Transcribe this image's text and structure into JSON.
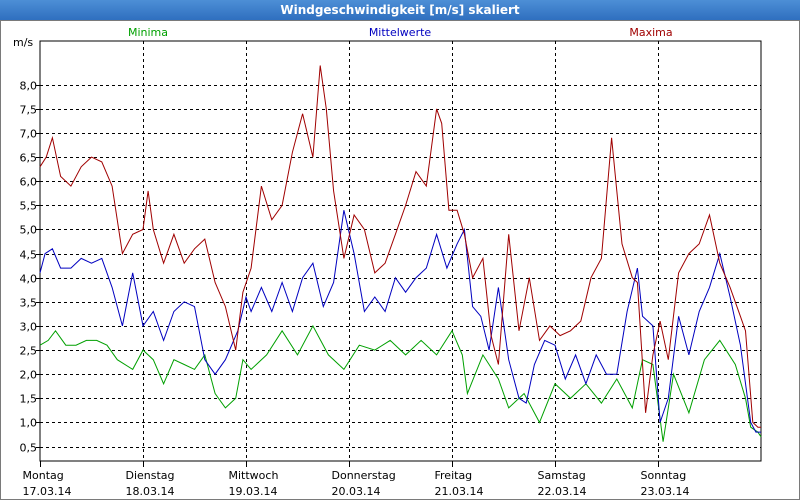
{
  "window": {
    "title": "Windgeschwindigkeit [m/s] skaliert"
  },
  "chart_data": {
    "type": "line",
    "title": "Windgeschwindigkeit [m/s] skaliert",
    "ylabel": "m/s",
    "ylim": [
      0.2,
      8.7
    ],
    "xlim": [
      0,
      7
    ],
    "yticks": [
      0.5,
      1.0,
      1.5,
      2.0,
      2.5,
      3.0,
      3.5,
      4.0,
      4.5,
      5.0,
      5.5,
      6.0,
      6.5,
      7.0,
      7.5,
      8.0
    ],
    "ytick_labels": [
      "0,5",
      "1,0",
      "1,5",
      "2,0",
      "2,5",
      "3,0",
      "3,5",
      "4,0",
      "4,5",
      "5,0",
      "5,5",
      "6,0",
      "6,5",
      "7,0",
      "7,5",
      "8,0"
    ],
    "days": [
      {
        "name": "Montag",
        "date": "17.03.14"
      },
      {
        "name": "Dienstag",
        "date": "18.03.14"
      },
      {
        "name": "Mittwoch",
        "date": "19.03.14"
      },
      {
        "name": "Donnerstag",
        "date": "20.03.14"
      },
      {
        "name": "Freitag",
        "date": "21.03.14"
      },
      {
        "name": "Samstag",
        "date": "22.03.14"
      },
      {
        "name": "Sonntag",
        "date": "23.03.14"
      }
    ],
    "grid": true,
    "legend_position": "top",
    "series": [
      {
        "name": "Minima",
        "color": "#00a000",
        "x": [
          0.0,
          0.08,
          0.15,
          0.25,
          0.35,
          0.45,
          0.55,
          0.65,
          0.75,
          0.9,
          1.0,
          1.1,
          1.2,
          1.3,
          1.4,
          1.5,
          1.6,
          1.7,
          1.8,
          1.9,
          1.97,
          2.05,
          2.2,
          2.35,
          2.5,
          2.65,
          2.8,
          2.95,
          3.1,
          3.25,
          3.4,
          3.55,
          3.7,
          3.85,
          4.0,
          4.1,
          4.15,
          4.3,
          4.45,
          4.55,
          4.7,
          4.85,
          5.0,
          5.15,
          5.3,
          5.45,
          5.6,
          5.75,
          5.85,
          5.95,
          6.05,
          6.15,
          6.3,
          6.45,
          6.6,
          6.75,
          6.85,
          6.9,
          6.97,
          7.0
        ],
        "y": [
          2.6,
          2.7,
          2.9,
          2.6,
          2.6,
          2.7,
          2.7,
          2.6,
          2.3,
          2.1,
          2.5,
          2.3,
          1.8,
          2.3,
          2.2,
          2.1,
          2.4,
          1.6,
          1.3,
          1.5,
          2.3,
          2.1,
          2.4,
          2.9,
          2.4,
          3.0,
          2.4,
          2.1,
          2.6,
          2.5,
          2.7,
          2.4,
          2.7,
          2.4,
          2.9,
          2.4,
          1.6,
          2.4,
          1.9,
          1.3,
          1.6,
          1.0,
          1.8,
          1.5,
          1.8,
          1.4,
          1.9,
          1.3,
          2.3,
          2.2,
          0.6,
          2.0,
          1.2,
          2.3,
          2.7,
          2.2,
          1.5,
          0.9,
          0.8,
          0.7
        ]
      },
      {
        "name": "Mittelwerte",
        "color": "#0000c0",
        "x": [
          0.0,
          0.05,
          0.12,
          0.2,
          0.3,
          0.4,
          0.5,
          0.6,
          0.7,
          0.8,
          0.9,
          1.0,
          1.1,
          1.2,
          1.3,
          1.4,
          1.5,
          1.6,
          1.7,
          1.8,
          1.92,
          2.0,
          2.05,
          2.15,
          2.25,
          2.35,
          2.45,
          2.55,
          2.65,
          2.75,
          2.85,
          2.95,
          3.05,
          3.15,
          3.25,
          3.35,
          3.45,
          3.55,
          3.65,
          3.75,
          3.85,
          3.95,
          4.05,
          4.12,
          4.2,
          4.28,
          4.36,
          4.45,
          4.55,
          4.65,
          4.72,
          4.8,
          4.9,
          5.0,
          5.1,
          5.2,
          5.3,
          5.4,
          5.5,
          5.6,
          5.7,
          5.8,
          5.85,
          5.95,
          6.02,
          6.1,
          6.2,
          6.3,
          6.4,
          6.5,
          6.6,
          6.7,
          6.8,
          6.9,
          6.95,
          7.0
        ],
        "y": [
          4.1,
          4.5,
          4.6,
          4.2,
          4.2,
          4.4,
          4.3,
          4.4,
          3.8,
          3.0,
          4.1,
          3.0,
          3.3,
          2.7,
          3.3,
          3.5,
          3.4,
          2.3,
          2.0,
          2.3,
          2.9,
          3.6,
          3.3,
          3.8,
          3.3,
          3.9,
          3.3,
          4.0,
          4.3,
          3.4,
          3.9,
          5.4,
          4.5,
          3.3,
          3.6,
          3.3,
          4.0,
          3.7,
          4.0,
          4.2,
          4.9,
          4.2,
          4.7,
          5.0,
          3.4,
          3.2,
          2.5,
          3.8,
          2.3,
          1.5,
          1.4,
          2.2,
          2.7,
          2.6,
          1.9,
          2.4,
          1.8,
          2.4,
          2.0,
          2.0,
          3.3,
          4.2,
          3.2,
          3.0,
          1.0,
          1.5,
          3.2,
          2.4,
          3.3,
          3.8,
          4.5,
          3.6,
          2.6,
          1.0,
          0.8,
          0.8
        ]
      },
      {
        "name": "Maxima",
        "color": "#a00000",
        "x": [
          0.0,
          0.06,
          0.12,
          0.2,
          0.3,
          0.4,
          0.5,
          0.6,
          0.7,
          0.8,
          0.9,
          1.0,
          1.05,
          1.1,
          1.2,
          1.3,
          1.4,
          1.5,
          1.6,
          1.7,
          1.8,
          1.9,
          1.97,
          2.05,
          2.15,
          2.25,
          2.35,
          2.45,
          2.55,
          2.65,
          2.72,
          2.78,
          2.85,
          2.95,
          3.05,
          3.15,
          3.25,
          3.35,
          3.45,
          3.55,
          3.65,
          3.75,
          3.85,
          3.9,
          3.97,
          4.05,
          4.12,
          4.2,
          4.3,
          4.38,
          4.45,
          4.55,
          4.65,
          4.75,
          4.85,
          4.95,
          5.05,
          5.15,
          5.25,
          5.35,
          5.45,
          5.55,
          5.65,
          5.75,
          5.8,
          5.88,
          5.95,
          6.02,
          6.1,
          6.2,
          6.3,
          6.4,
          6.5,
          6.6,
          6.7,
          6.8,
          6.85,
          6.92,
          6.97,
          7.0
        ],
        "y": [
          6.3,
          6.5,
          6.9,
          6.1,
          5.9,
          6.3,
          6.5,
          6.4,
          5.9,
          4.5,
          4.9,
          5.0,
          5.8,
          5.0,
          4.3,
          4.9,
          4.3,
          4.6,
          4.8,
          3.9,
          3.4,
          2.5,
          3.7,
          4.2,
          5.9,
          5.2,
          5.5,
          6.6,
          7.4,
          6.5,
          8.4,
          7.5,
          5.8,
          4.4,
          5.3,
          5.0,
          4.1,
          4.3,
          4.9,
          5.5,
          6.2,
          5.9,
          7.5,
          7.2,
          5.4,
          5.4,
          4.9,
          4.0,
          4.4,
          2.8,
          2.2,
          4.9,
          2.9,
          4.0,
          2.7,
          3.0,
          2.8,
          2.9,
          3.1,
          4.0,
          4.4,
          6.9,
          4.7,
          4.0,
          3.9,
          1.2,
          2.4,
          3.1,
          2.3,
          4.1,
          4.5,
          4.7,
          5.3,
          4.3,
          3.8,
          3.2,
          2.9,
          1.0,
          0.9,
          0.9
        ]
      }
    ]
  }
}
